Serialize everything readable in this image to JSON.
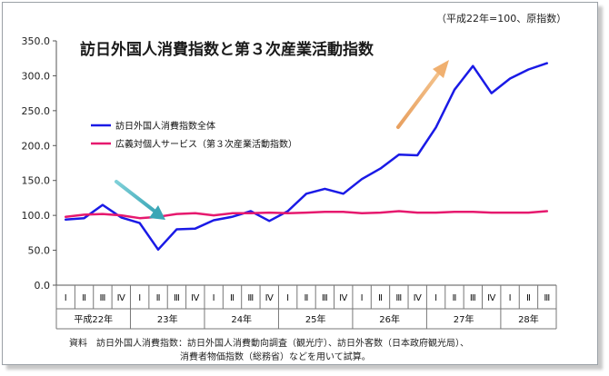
{
  "chart_data": {
    "type": "line",
    "title": "訪日外国人消費指数と第３次産業活動指数",
    "unit_note": "（平成22年=100、原指数）",
    "ylim": [
      0,
      350
    ],
    "yticks": [
      "0.0",
      "50.0",
      "100.0",
      "150.0",
      "200.0",
      "250.0",
      "300.0",
      "350.0"
    ],
    "quarters": [
      "Ⅰ",
      "Ⅱ",
      "Ⅲ",
      "Ⅳ",
      "Ⅰ",
      "Ⅱ",
      "Ⅲ",
      "Ⅳ",
      "Ⅰ",
      "Ⅱ",
      "Ⅲ",
      "Ⅳ",
      "Ⅰ",
      "Ⅱ",
      "Ⅲ",
      "Ⅳ",
      "Ⅰ",
      "Ⅱ",
      "Ⅲ",
      "Ⅳ",
      "Ⅰ",
      "Ⅱ",
      "Ⅲ",
      "Ⅳ",
      "Ⅰ",
      "Ⅱ",
      "Ⅲ"
    ],
    "years": [
      {
        "label": "平成22年",
        "quarters": 4
      },
      {
        "label": "23年",
        "quarters": 4
      },
      {
        "label": "24年",
        "quarters": 4
      },
      {
        "label": "25年",
        "quarters": 4
      },
      {
        "label": "26年",
        "quarters": 4
      },
      {
        "label": "27年",
        "quarters": 4
      },
      {
        "label": "28年",
        "quarters": 3
      }
    ],
    "series": [
      {
        "name": "訪日外国人消費指数全体",
        "color": "#1a1ae6",
        "values": [
          94,
          96,
          115,
          97,
          89,
          51,
          80,
          81,
          93,
          98,
          106,
          92,
          106,
          131,
          138,
          131,
          152,
          167,
          187,
          186,
          226,
          280,
          314,
          275,
          296,
          309,
          318
        ]
      },
      {
        "name": "広義対個人サービス（第３次産業活動指数）",
        "color": "#e6196e",
        "values": [
          98,
          101,
          102,
          100,
          96,
          98,
          102,
          103,
          100,
          103,
          103,
          104,
          103,
          104,
          105,
          105,
          103,
          104,
          106,
          104,
          104,
          105,
          105,
          104,
          104,
          104,
          106
        ]
      }
    ]
  },
  "source_note": {
    "line1": "資料　訪日外国人消費指数：訪日外国人消費動向調査（観光庁）、訪日外客数（日本政府観光局）、",
    "line2": "消費者物価指数（総務省）などを用いて試算。"
  }
}
